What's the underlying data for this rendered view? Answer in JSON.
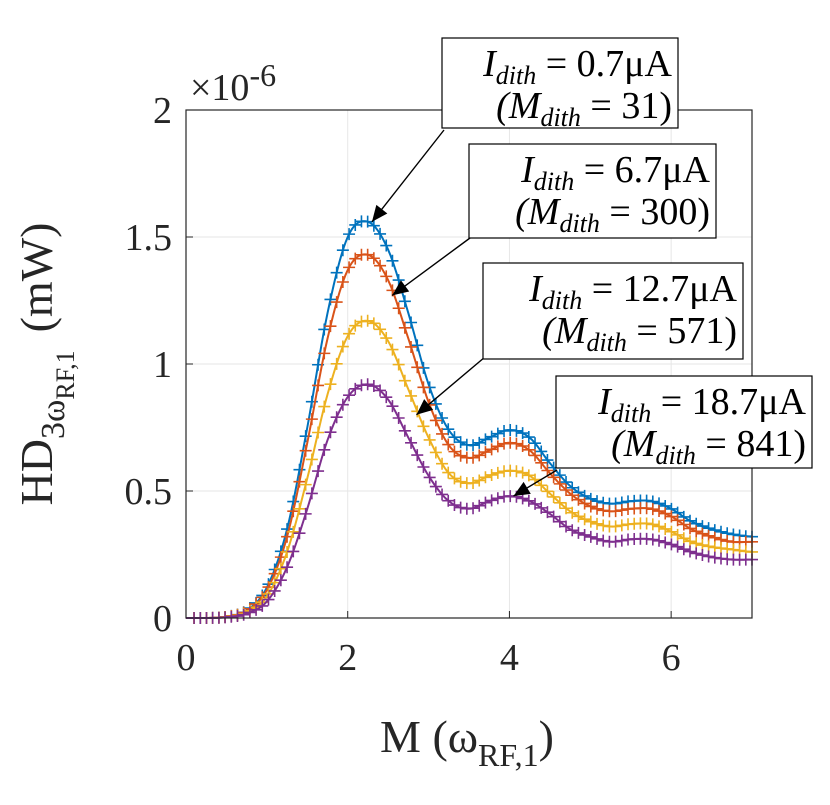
{
  "chart_data": {
    "type": "line",
    "title": "",
    "xlabel": "M (ω",
    "xlabel_sub": "RF,1",
    "xlabel_close": ")",
    "ylabel": "HD",
    "ylabel_sub_main": "3ω",
    "ylabel_sub_sub": "RF,1",
    "ylabel_unit": "(mW)",
    "exponent_label": "×10",
    "exponent_power": "-6",
    "xlim": [
      0,
      7
    ],
    "ylim": [
      0,
      2
    ],
    "xticks": [
      "0",
      "2",
      "4",
      "6"
    ],
    "yticks": [
      "0",
      "0.5",
      "1",
      "1.5",
      "2"
    ],
    "grid": true,
    "x": [
      0,
      0.25,
      0.5,
      0.75,
      1.0,
      1.25,
      1.5,
      1.75,
      2.0,
      2.25,
      2.5,
      2.75,
      3.0,
      3.25,
      3.5,
      3.75,
      4.0,
      4.25,
      4.5,
      4.75,
      5.0,
      5.25,
      5.5,
      5.75,
      6.0,
      6.25,
      6.5,
      6.75,
      7.0
    ],
    "series": [
      {
        "name": "I_dith = 0.7μA (M_dith = 31)",
        "color": "#0072BD",
        "values": [
          0,
          0,
          0.005,
          0.03,
          0.12,
          0.35,
          0.75,
          1.2,
          1.5,
          1.56,
          1.45,
          1.2,
          0.92,
          0.74,
          0.68,
          0.71,
          0.74,
          0.71,
          0.61,
          0.52,
          0.47,
          0.45,
          0.46,
          0.46,
          0.43,
          0.38,
          0.35,
          0.33,
          0.32
        ]
      },
      {
        "name": "I_dith = 6.7μA (M_dith = 300)",
        "color": "#D95319",
        "values": [
          0,
          0,
          0.005,
          0.028,
          0.11,
          0.32,
          0.69,
          1.1,
          1.37,
          1.43,
          1.33,
          1.1,
          0.85,
          0.68,
          0.63,
          0.66,
          0.69,
          0.66,
          0.57,
          0.49,
          0.44,
          0.42,
          0.43,
          0.43,
          0.4,
          0.35,
          0.32,
          0.3,
          0.3
        ]
      },
      {
        "name": "I_dith = 12.7μA (M_dith = 571)",
        "color": "#EDB120",
        "values": [
          0,
          0,
          0.004,
          0.022,
          0.085,
          0.26,
          0.55,
          0.88,
          1.11,
          1.17,
          1.09,
          0.9,
          0.71,
          0.57,
          0.53,
          0.56,
          0.58,
          0.56,
          0.49,
          0.42,
          0.38,
          0.36,
          0.37,
          0.37,
          0.34,
          0.3,
          0.28,
          0.27,
          0.26
        ]
      },
      {
        "name": "I_dith = 18.7μA (M_dith = 841)",
        "color": "#7E2F8E",
        "values": [
          0,
          0,
          0.003,
          0.017,
          0.065,
          0.2,
          0.43,
          0.7,
          0.87,
          0.92,
          0.86,
          0.71,
          0.56,
          0.46,
          0.43,
          0.46,
          0.48,
          0.46,
          0.41,
          0.35,
          0.32,
          0.3,
          0.31,
          0.31,
          0.29,
          0.26,
          0.24,
          0.23,
          0.23
        ]
      }
    ],
    "annotations": [
      {
        "line1": "I",
        "line1_sub": "dith",
        "line1_rest": " = 0.7μA",
        "line2_open": "(M",
        "line2_sub": "dith",
        "line2_rest": " = 31)",
        "target_x": 2.3,
        "target_y": 1.56
      },
      {
        "line1": "I",
        "line1_sub": "dith",
        "line1_rest": " = 6.7μA",
        "line2_open": "(M",
        "line2_sub": "dith",
        "line2_rest": " = 300)",
        "target_x": 2.55,
        "target_y": 1.27
      },
      {
        "line1": "I",
        "line1_sub": "dith",
        "line1_rest": " = 12.7μA",
        "line2_open": "(M",
        "line2_sub": "dith",
        "line2_rest": " = 571)",
        "target_x": 2.85,
        "target_y": 0.8
      },
      {
        "line1": "I",
        "line1_sub": "dith",
        "line1_rest": " = 18.7μA",
        "line2_open": "(M",
        "line2_sub": "dith",
        "line2_rest": " = 841)",
        "target_x": 4.05,
        "target_y": 0.48
      }
    ]
  }
}
